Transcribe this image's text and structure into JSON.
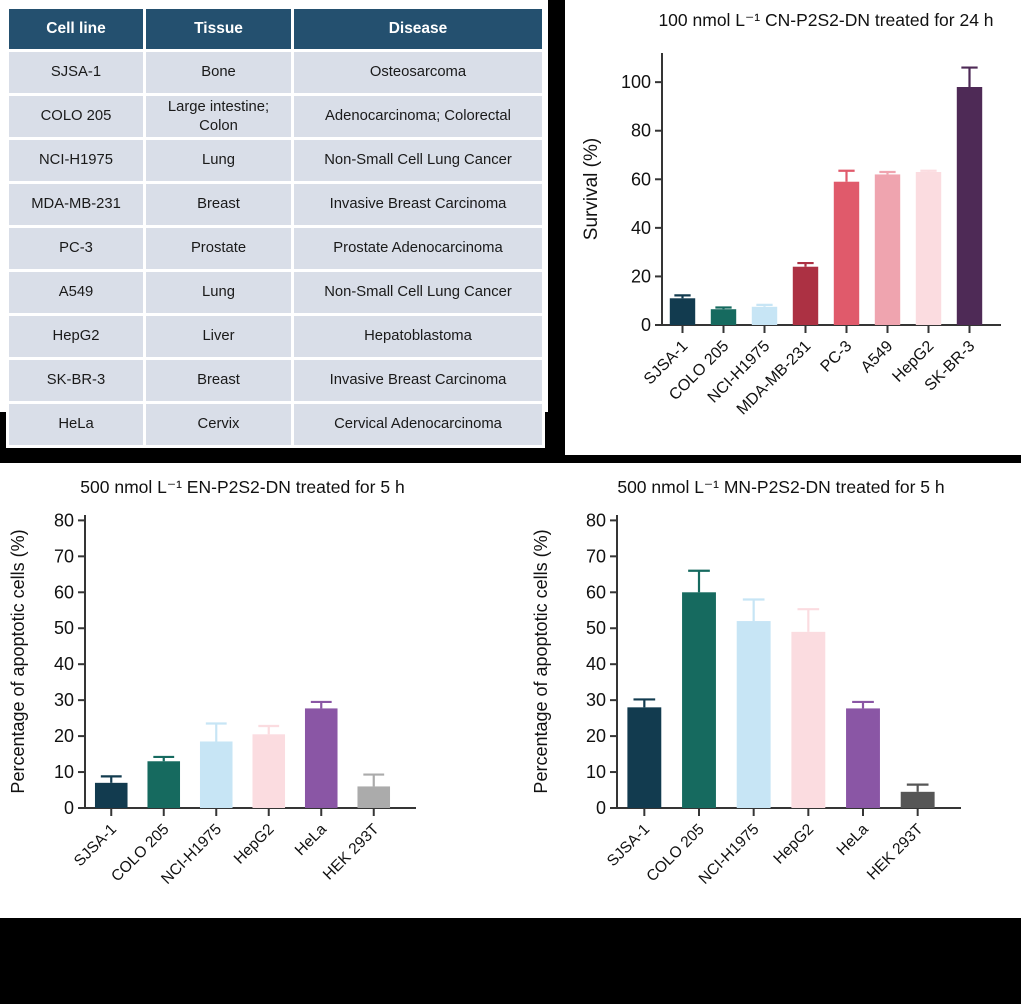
{
  "table": {
    "header_bg": "#24506F",
    "row_bg": "#D9DEE8",
    "headers": [
      "Cell line",
      "Tissue",
      "Disease"
    ],
    "rows": [
      [
        "SJSA-1",
        "Bone",
        "Osteosarcoma"
      ],
      [
        "COLO 205",
        "Large intestine; Colon",
        "Adenocarcinoma; Colorectal"
      ],
      [
        "NCI-H1975",
        "Lung",
        "Non-Small Cell Lung Cancer"
      ],
      [
        "MDA-MB-231",
        "Breast",
        "Invasive Breast Carcinoma"
      ],
      [
        "PC-3",
        "Prostate",
        "Prostate Adenocarcinoma"
      ],
      [
        "A549",
        "Lung",
        "Non-Small Cell Lung Cancer"
      ],
      [
        "HepG2",
        "Liver",
        "Hepatoblastoma"
      ],
      [
        "SK-BR-3",
        "Breast",
        "Invasive Breast Carcinoma"
      ],
      [
        "HeLa",
        "Cervix",
        "Cervical Adenocarcinoma"
      ]
    ]
  },
  "chart_data": [
    {
      "type": "bar",
      "title": "100 nmol L⁻¹ CN-P2S2-DN treated for 24 h",
      "ylabel": "Survival (%)",
      "xlabel": "",
      "ylim": [
        0,
        112
      ],
      "yticks": [
        0,
        20,
        40,
        60,
        80,
        100
      ],
      "grid": false,
      "legend": "none",
      "categories": [
        "SJSA-1",
        "COLO 205",
        "NCI-H1975",
        "MDA-MB-231",
        "PC-3",
        "A549",
        "HepG2",
        "SK-BR-3"
      ],
      "values": [
        11,
        6.5,
        7.5,
        24,
        59,
        62,
        63,
        98
      ],
      "errors": [
        1.2,
        0.7,
        0.8,
        1.5,
        4.5,
        1,
        0.5,
        8
      ],
      "colors": [
        "#123B4F",
        "#166A5F",
        "#C7E5F5",
        "#AC3143",
        "#E05A6B",
        "#EFA4AF",
        "#FBDCE0",
        "#4E2A56"
      ]
    },
    {
      "type": "bar",
      "title": "500 nmol L⁻¹ EN-P2S2-DN treated for 5 h",
      "ylabel": "Percentage of apoptotic cells (%)",
      "xlabel": "",
      "ylim": [
        0,
        81.5
      ],
      "yticks": [
        0,
        10,
        20,
        30,
        40,
        50,
        60,
        70,
        80
      ],
      "grid": false,
      "legend": "none",
      "categories": [
        "SJSA-1",
        "COLO 205",
        "NCI-H1975",
        "HepG2",
        "HeLa",
        "HEK 293T"
      ],
      "values": [
        7,
        13,
        18.5,
        20.5,
        27.7,
        6
      ],
      "errors": [
        1.8,
        1.2,
        5,
        2.3,
        1.8,
        3.3
      ],
      "colors": [
        "#123B4F",
        "#166A5F",
        "#C7E5F5",
        "#FBDCE0",
        "#8A56A5",
        "#ABABAB"
      ]
    },
    {
      "type": "bar",
      "title": "500 nmol L⁻¹ MN-P2S2-DN treated for 5 h",
      "ylabel": "Percentage of apoptotic cells (%)",
      "xlabel": "",
      "ylim": [
        0,
        81.5
      ],
      "yticks": [
        0,
        10,
        20,
        30,
        40,
        50,
        60,
        70,
        80
      ],
      "grid": false,
      "legend": "none",
      "categories": [
        "SJSA-1",
        "COLO 205",
        "NCI-H1975",
        "HepG2",
        "HeLa",
        "HEK 293T"
      ],
      "values": [
        28,
        60,
        52,
        49,
        27.7,
        4.5
      ],
      "errors": [
        2.2,
        6,
        6,
        6.3,
        1.8,
        2
      ],
      "colors": [
        "#123B4F",
        "#166A5F",
        "#C7E5F5",
        "#FBDCE0",
        "#8A56A5",
        "#565656"
      ]
    }
  ]
}
